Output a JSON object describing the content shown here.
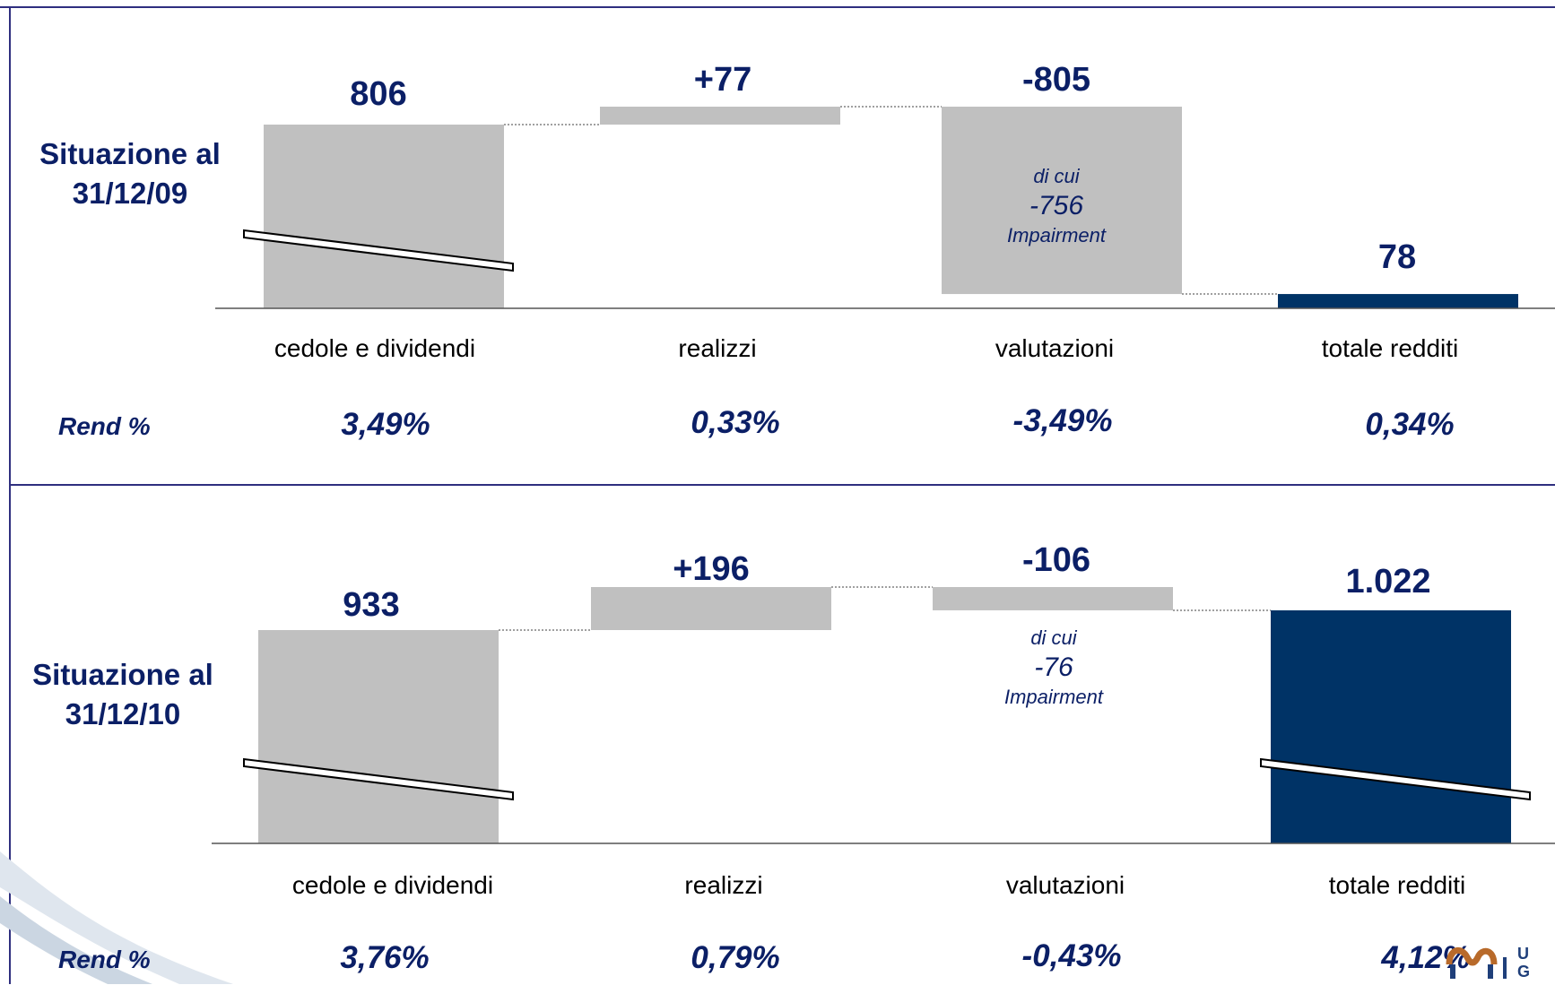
{
  "panels": [
    {
      "title_line1": "Situazione al",
      "title_line2": "31/12/09",
      "note": {
        "line1": "di cui",
        "line2": "-756",
        "line3": "Impairment"
      },
      "rend_label": "Rend %"
    },
    {
      "title_line1": "Situazione al",
      "title_line2": "31/12/10",
      "note": {
        "line1": "di cui",
        "line2": "-76",
        "line3": "Impairment"
      },
      "rend_label": "Rend %"
    }
  ],
  "chart_data": [
    {
      "type": "bar",
      "subtype": "waterfall",
      "categories": [
        "cedole e dividendi",
        "realizzi",
        "valutazioni",
        "totale redditi"
      ],
      "values": [
        806,
        77,
        -805,
        78
      ],
      "value_labels": [
        "806",
        "+77",
        "-805",
        "78"
      ],
      "rend_percent": [
        "3,49%",
        "0,33%",
        "-3,49%",
        "0,34%"
      ],
      "axis_break_on": [
        "cedole e dividendi"
      ],
      "colors": {
        "step": "#c0c0c0",
        "total": "#003366"
      }
    },
    {
      "type": "bar",
      "subtype": "waterfall",
      "categories": [
        "cedole e dividendi",
        "realizzi",
        "valutazioni",
        "totale redditi"
      ],
      "values": [
        933,
        196,
        -106,
        1022
      ],
      "value_labels": [
        "933",
        "+196",
        "-106",
        "1.022"
      ],
      "rend_percent": [
        "3,76%",
        "0,79%",
        "-0,43%",
        "4,12%"
      ],
      "axis_break_on": [
        "cedole e dividendi",
        "totale redditi"
      ],
      "colors": {
        "step": "#c0c0c0",
        "total": "#003366"
      }
    }
  ],
  "colors": {
    "text_primary": "#0b1f66",
    "frame": "#2f2f7f",
    "bar_grey": "#c0c0c0",
    "bar_total": "#003366"
  },
  "logo_text": "U G"
}
